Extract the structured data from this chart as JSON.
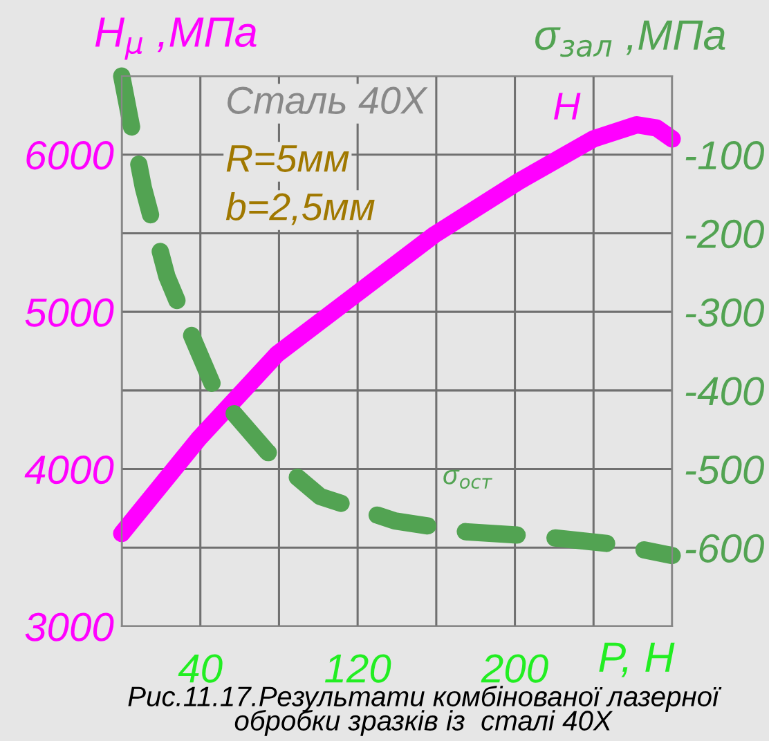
{
  "chart_data": {
    "type": "line",
    "xlabel": "P, H",
    "ylabel": "H$_{μ}$ ,МПа",
    "y2label": "σ$_{зал}$ ,МПа",
    "xlim": [
      0,
      280
    ],
    "xticks": [
      {
        "value": 0,
        "label": null
      },
      40,
      {
        "value": 80,
        "label": null
      },
      120,
      {
        "value": 160,
        "label": null
      },
      200,
      {
        "value": 240,
        "label": null
      },
      {
        "value": 280,
        "label": null
      }
    ],
    "ylim": [
      3000,
      6500
    ],
    "yticks": [
      3000,
      {
        "value": 3500,
        "label": null
      },
      4000,
      {
        "value": 4500,
        "label": null
      },
      5000,
      {
        "value": 5500,
        "label": null
      },
      6000,
      {
        "value": 6500,
        "label": null
      }
    ],
    "y2lim": [
      -700,
      0
    ],
    "y2ticks": [
      -600,
      -500,
      -400,
      -300,
      -200,
      -100
    ],
    "grid": true,
    "marker": "none",
    "series": [
      {
        "name": "H",
        "color": "#ff00ff",
        "line_style": "solid",
        "x": [
          0,
          39,
          79,
          119,
          159,
          202,
          240,
          262,
          272,
          280
        ],
        "values": [
          3590,
          4190,
          4730,
          5110,
          5490,
          5830,
          6100,
          6190,
          6170,
          6100
        ]
      },
      {
        "name": "σ$_{ост}$",
        "color": "#52a352",
        "line_style": "dashed",
        "axis": "y2",
        "x": [
          0,
          11,
          23,
          33,
          48,
          74,
          101,
          139,
          176,
          214,
          252,
          280
        ],
        "values": [
          0,
          -142,
          -255,
          -315,
          -403,
          -478,
          -535,
          -566,
          -580,
          -586,
          -596,
          -610
        ]
      }
    ],
    "annotations": [
      "Сталь 40X",
      "R=5мм",
      "b=2,5мм",
      "Рис.11.17.Результати комбінованої лазерної обробки зразків із  сталі 40X"
    ]
  }
}
